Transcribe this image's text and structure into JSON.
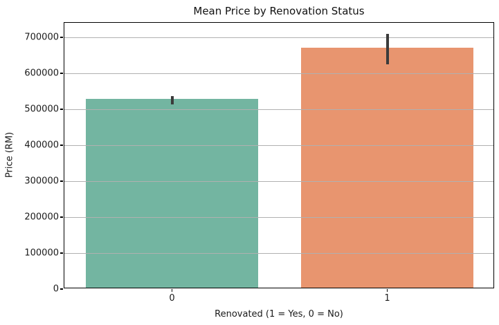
{
  "chart_data": {
    "type": "bar",
    "title": "Mean Price by Renovation Status",
    "xlabel": "Renovated (1 = Yes, 0 = No)",
    "ylabel": "Price (RM)",
    "categories": [
      "0",
      "1"
    ],
    "values": [
      525000,
      667000
    ],
    "error_bars": [
      {
        "low": 514000,
        "high": 536000
      },
      {
        "low": 625000,
        "high": 710000
      }
    ],
    "bar_colors": [
      "#73b5a1",
      "#e8956f"
    ],
    "error_bar_color": "#3b3b3b",
    "grid_color": "#b0b0b0",
    "background_color": "#ffffff",
    "ylim": [
      0,
      740000
    ],
    "yticks": [
      0,
      100000,
      200000,
      300000,
      400000,
      500000,
      600000,
      700000
    ],
    "ytick_labels": [
      "0",
      "100000",
      "200000",
      "300000",
      "400000",
      "500000",
      "600000",
      "700000"
    ],
    "bar_width_fraction": 0.8,
    "grid": "horizontal, drawn above bars",
    "legend": "none"
  }
}
